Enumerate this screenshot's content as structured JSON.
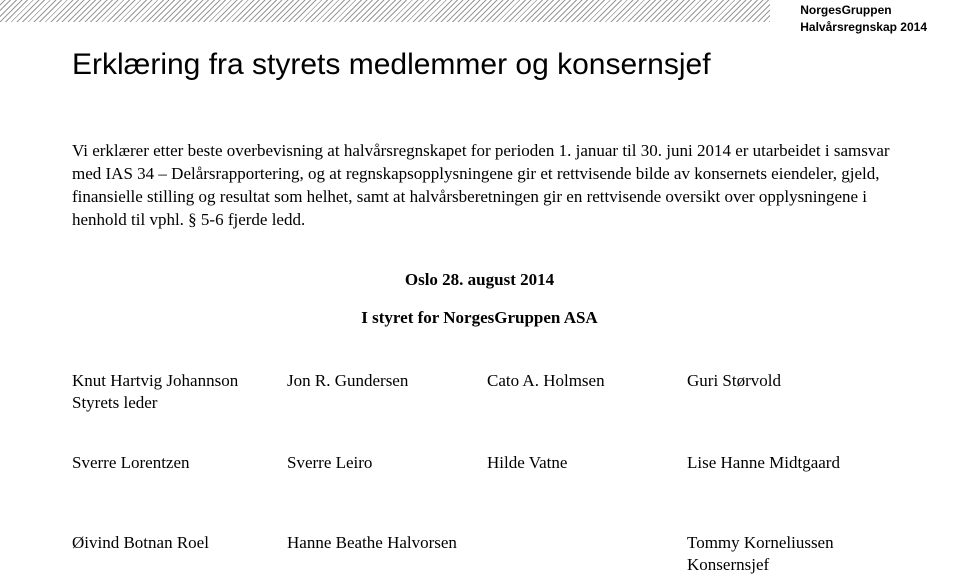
{
  "header": {
    "company": "NorgesGruppen",
    "report": "Halvårsregnskap 2014"
  },
  "title": "Erklæring fra styrets medlemmer og konsernsjef",
  "paragraph": "Vi erklærer etter beste overbevisning at halvårsregnskapet for perioden 1. januar til 30. juni 2014 er utarbeidet i samsvar med IAS 34 – Delårsrapportering, og at regnskapsopplysningene gir et rettvisende bilde av konsernets eiendeler, gjeld, finansielle stilling og resultat som helhet, samt at halvårsberetningen gir en rettvisende oversikt over opplysningene i henhold til vphl. § 5-6 fjerde ledd.",
  "date_line": "Oslo 28. august 2014",
  "board_line": "I styret for NorgesGruppen ASA",
  "signers": {
    "row1": {
      "c1_name": "Knut Hartvig Johannson",
      "c1_role": "Styrets leder",
      "c2_name": "Jon R. Gundersen",
      "c3_name": "Cato A. Holmsen",
      "c4_name": "Guri Størvold"
    },
    "row2": {
      "c1_name": "Sverre Lorentzen",
      "c2_name": "Sverre Leiro",
      "c3_name": "Hilde Vatne",
      "c4_name": "Lise Hanne Midtgaard"
    },
    "row3": {
      "c1_name": "Øivind Botnan Roel",
      "c2_name": "Hanne Beathe Halvorsen",
      "c3_name": "",
      "c4_name": "Tommy Korneliussen",
      "c4_role": "Konsernsjef"
    }
  }
}
